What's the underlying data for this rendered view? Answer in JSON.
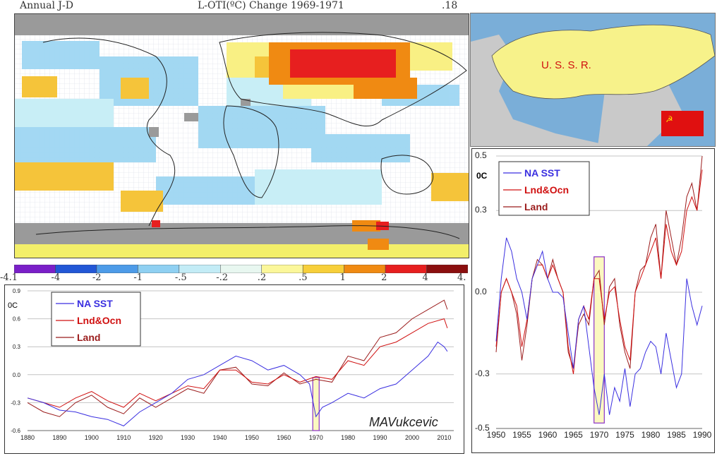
{
  "map": {
    "title_left": "Annual J-D",
    "title_center": "L-OTI(ºC) Change 1969-1971",
    "title_right": ".18",
    "colorbar": {
      "labels": [
        "-4.1",
        "-4",
        "-2",
        "-1",
        "-.5",
        "-.2",
        ".2",
        ".5",
        "1",
        "2",
        "4",
        "4."
      ],
      "colors": [
        "#7a1fc8",
        "#2257d6",
        "#4d9be8",
        "#8fd0f2",
        "#c3ecf6",
        "#e8f7f0",
        "#fbf79a",
        "#f7cf3a",
        "#f08a12",
        "#e71f1f",
        "#8b0f0f"
      ]
    }
  },
  "inset": {
    "country_label": "U. S. S. R.",
    "colors": {
      "ocean": "#7aaed8",
      "ussr": "#f7f28a",
      "other": "#c9c9c9",
      "flag": "#e01010",
      "flag_symbol": "#ffdd00"
    }
  },
  "chart_data": [
    {
      "type": "line",
      "ylabel": "0C",
      "signature": "MAVukcevic",
      "xlim": [
        1880,
        2013
      ],
      "ylim": [
        -0.6,
        0.9
      ],
      "xticks": [
        1880,
        1890,
        1900,
        1910,
        1920,
        1930,
        1940,
        1950,
        1960,
        1970,
        1980,
        1990,
        2000,
        2010
      ],
      "yticks": [
        "0.9",
        "0.6",
        "0.3",
        "0.0",
        "-0.3",
        "-0.6"
      ],
      "grid": true,
      "legend_position": "top-left",
      "highlight": {
        "x_from": 1969,
        "x_to": 1971,
        "y_from": -0.6,
        "y_to": -0.03,
        "fill": "#fbf8c0",
        "stroke": "#8a2fc7"
      },
      "series": [
        {
          "name": "NA SST",
          "color": "#3a2fe0",
          "x": [
            1880,
            1885,
            1890,
            1895,
            1900,
            1905,
            1910,
            1915,
            1920,
            1925,
            1930,
            1935,
            1940,
            1945,
            1950,
            1955,
            1960,
            1965,
            1968,
            1970,
            1972,
            1975,
            1980,
            1985,
            1990,
            1995,
            2000,
            2005,
            2008,
            2010,
            2011
          ],
          "y": [
            -0.25,
            -0.3,
            -0.38,
            -0.4,
            -0.45,
            -0.48,
            -0.55,
            -0.4,
            -0.3,
            -0.2,
            -0.05,
            0.0,
            0.1,
            0.2,
            0.15,
            0.05,
            0.1,
            0.0,
            -0.1,
            -0.45,
            -0.35,
            -0.3,
            -0.2,
            -0.25,
            -0.15,
            -0.1,
            0.05,
            0.2,
            0.35,
            0.3,
            0.25
          ]
        },
        {
          "name": "Lnd&Ocn",
          "color": "#d01010",
          "x": [
            1880,
            1885,
            1890,
            1895,
            1900,
            1905,
            1910,
            1915,
            1920,
            1925,
            1930,
            1935,
            1940,
            1945,
            1950,
            1955,
            1960,
            1965,
            1970,
            1975,
            1980,
            1985,
            1990,
            1995,
            2000,
            2005,
            2010,
            2011
          ],
          "y": [
            -0.25,
            -0.3,
            -0.35,
            -0.25,
            -0.18,
            -0.28,
            -0.35,
            -0.2,
            -0.28,
            -0.2,
            -0.12,
            -0.15,
            0.05,
            0.05,
            -0.08,
            -0.1,
            0.0,
            -0.08,
            -0.02,
            -0.05,
            0.15,
            0.1,
            0.3,
            0.35,
            0.45,
            0.55,
            0.6,
            0.5
          ]
        },
        {
          "name": "Land",
          "color": "#9b1c1c",
          "x": [
            1880,
            1885,
            1890,
            1895,
            1900,
            1905,
            1910,
            1915,
            1920,
            1925,
            1930,
            1935,
            1940,
            1945,
            1950,
            1955,
            1960,
            1965,
            1970,
            1975,
            1980,
            1985,
            1990,
            1995,
            2000,
            2005,
            2010,
            2011
          ],
          "y": [
            -0.3,
            -0.4,
            -0.45,
            -0.3,
            -0.22,
            -0.35,
            -0.42,
            -0.25,
            -0.35,
            -0.25,
            -0.15,
            -0.2,
            0.05,
            0.08,
            -0.1,
            -0.12,
            0.02,
            -0.1,
            -0.05,
            -0.08,
            0.2,
            0.15,
            0.4,
            0.45,
            0.6,
            0.7,
            0.8,
            0.7
          ]
        }
      ]
    },
    {
      "type": "line",
      "ylabel": "0C",
      "xlim": [
        1950,
        1990
      ],
      "ylim": [
        -0.5,
        0.5
      ],
      "xticks": [
        1950,
        1955,
        1960,
        1965,
        1970,
        1975,
        1980,
        1985,
        1990
      ],
      "yticks": [
        "0.5",
        "0.3",
        "0.0",
        "-0.3",
        "-0.5"
      ],
      "grid": true,
      "legend_position": "top-left",
      "highlight": {
        "x_from": 1969,
        "x_to": 1971,
        "y_from": -0.48,
        "y_to": 0.13,
        "fill": "#fbf8c0",
        "stroke": "#8a2fc7"
      },
      "series": [
        {
          "name": "NA SST",
          "color": "#3a2fe0",
          "x": [
            1950,
            1951,
            1952,
            1953,
            1954,
            1955,
            1956,
            1957,
            1958,
            1959,
            1960,
            1961,
            1962,
            1963,
            1964,
            1965,
            1966,
            1967,
            1968,
            1969,
            1970,
            1971,
            1972,
            1973,
            1974,
            1975,
            1976,
            1977,
            1978,
            1979,
            1980,
            1981,
            1982,
            1983,
            1984,
            1985,
            1986,
            1987,
            1988,
            1989,
            1990
          ],
          "y": [
            -0.18,
            0.05,
            0.2,
            0.15,
            0.05,
            0.0,
            -0.1,
            0.05,
            0.1,
            0.15,
            0.05,
            0.0,
            0.0,
            -0.02,
            -0.15,
            -0.28,
            -0.1,
            -0.05,
            -0.2,
            -0.35,
            -0.45,
            -0.3,
            -0.45,
            -0.35,
            -0.4,
            -0.28,
            -0.42,
            -0.3,
            -0.28,
            -0.22,
            -0.18,
            -0.2,
            -0.3,
            -0.15,
            -0.25,
            -0.35,
            -0.3,
            0.05,
            -0.05,
            -0.12,
            -0.05
          ]
        },
        {
          "name": "Lnd&Ocn",
          "color": "#d01010",
          "x": [
            1950,
            1951,
            1952,
            1953,
            1954,
            1955,
            1956,
            1957,
            1958,
            1959,
            1960,
            1961,
            1962,
            1963,
            1964,
            1965,
            1966,
            1967,
            1968,
            1969,
            1970,
            1971,
            1972,
            1973,
            1974,
            1975,
            1976,
            1977,
            1978,
            1979,
            1980,
            1981,
            1982,
            1983,
            1984,
            1985,
            1986,
            1987,
            1988,
            1989,
            1990
          ],
          "y": [
            -0.2,
            0.0,
            0.05,
            0.0,
            -0.05,
            -0.2,
            -0.1,
            0.05,
            0.1,
            0.1,
            0.05,
            0.1,
            0.05,
            0.0,
            -0.2,
            -0.3,
            -0.1,
            -0.05,
            -0.1,
            0.05,
            0.05,
            -0.1,
            0.0,
            0.02,
            -0.1,
            -0.2,
            -0.25,
            0.0,
            0.05,
            0.1,
            0.15,
            0.2,
            0.05,
            0.25,
            0.15,
            0.1,
            0.15,
            0.3,
            0.35,
            0.3,
            0.45
          ]
        },
        {
          "name": "Land",
          "color": "#9b1c1c",
          "x": [
            1950,
            1951,
            1952,
            1953,
            1954,
            1955,
            1956,
            1957,
            1958,
            1959,
            1960,
            1961,
            1962,
            1963,
            1964,
            1965,
            1966,
            1967,
            1968,
            1969,
            1970,
            1971,
            1972,
            1973,
            1974,
            1975,
            1976,
            1977,
            1978,
            1979,
            1980,
            1981,
            1982,
            1983,
            1984,
            1985,
            1986,
            1987,
            1988,
            1989,
            1990
          ],
          "y": [
            -0.22,
            0.0,
            0.05,
            0.0,
            -0.08,
            -0.25,
            -0.12,
            0.05,
            0.12,
            0.1,
            0.05,
            0.12,
            0.05,
            0.0,
            -0.22,
            -0.28,
            -0.12,
            -0.08,
            -0.12,
            0.05,
            0.08,
            -0.12,
            0.02,
            0.05,
            -0.12,
            -0.22,
            -0.28,
            0.0,
            0.08,
            0.1,
            0.2,
            0.25,
            0.05,
            0.3,
            0.2,
            0.1,
            0.2,
            0.35,
            0.4,
            0.3,
            0.5
          ]
        }
      ]
    }
  ]
}
